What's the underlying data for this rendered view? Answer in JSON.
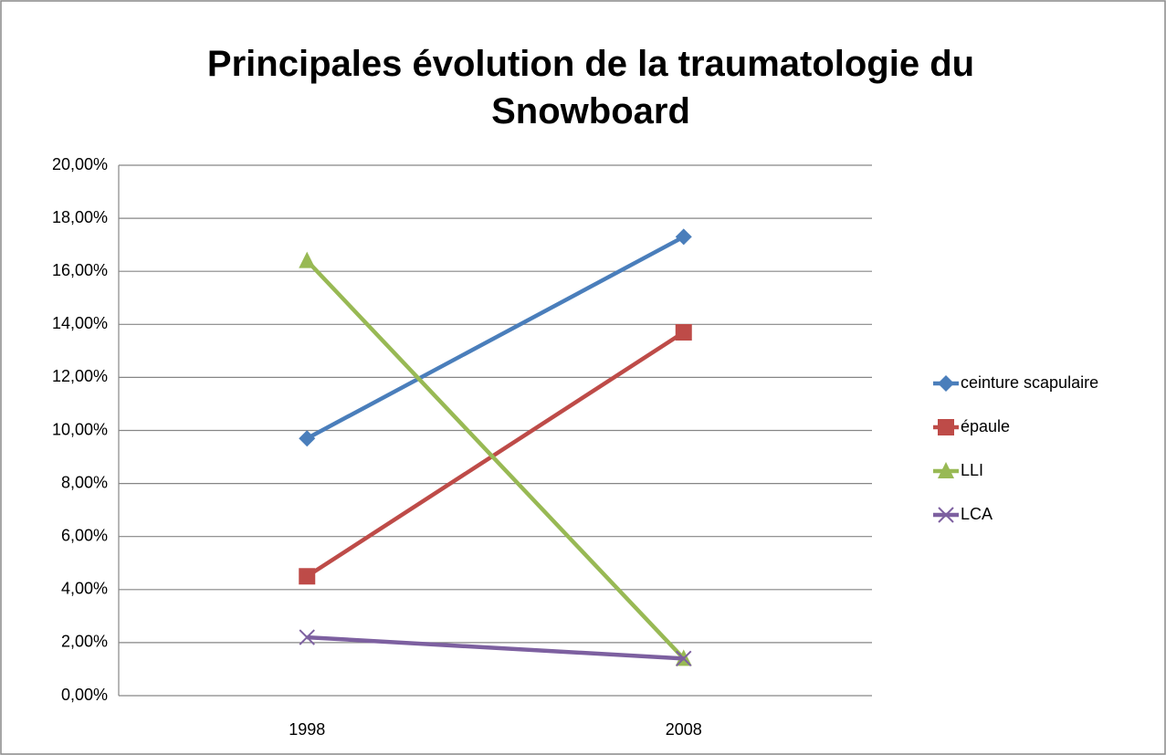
{
  "chart_data": {
    "type": "line",
    "title": "Principales évolution de la traumatologie du Snowboard",
    "categories": [
      "1998",
      "2008"
    ],
    "series": [
      {
        "name": "ceinture scapulaire",
        "color": "#4a7ebb",
        "marker": "diamond",
        "values": [
          9.7,
          17.3
        ]
      },
      {
        "name": "épaule",
        "color": "#be4b48",
        "marker": "square",
        "values": [
          4.5,
          13.7
        ]
      },
      {
        "name": "LLI",
        "color": "#98b954",
        "marker": "triangle",
        "values": [
          16.4,
          1.4
        ]
      },
      {
        "name": "LCA",
        "color": "#7d60a0",
        "marker": "x",
        "values": [
          2.2,
          1.4
        ]
      }
    ],
    "ylim": [
      0,
      20
    ],
    "yticks": [
      {
        "value": 0,
        "label": "0,00%"
      },
      {
        "value": 2,
        "label": "2,00%"
      },
      {
        "value": 4,
        "label": "4,00%"
      },
      {
        "value": 6,
        "label": "6,00%"
      },
      {
        "value": 8,
        "label": "8,00%"
      },
      {
        "value": 10,
        "label": "10,00%"
      },
      {
        "value": 12,
        "label": "12,00%"
      },
      {
        "value": 14,
        "label": "14,00%"
      },
      {
        "value": 16,
        "label": "16,00%"
      },
      {
        "value": 18,
        "label": "18,00%"
      },
      {
        "value": 20,
        "label": "20,00%"
      }
    ],
    "grid": true,
    "legend": "right"
  }
}
